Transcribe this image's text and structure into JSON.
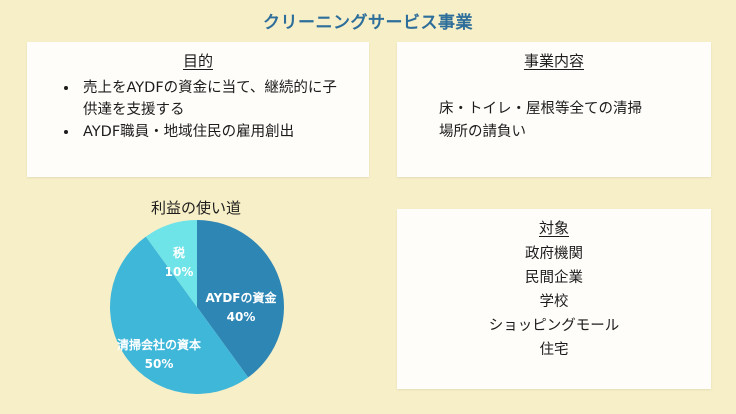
{
  "title": "クリーニングサービス事業",
  "purpose": {
    "heading": "目的",
    "items": [
      "売上をAYDFの資金に当て、継続的に子供達を支援する",
      "AYDF職員・地域住民の雇用創出"
    ]
  },
  "business": {
    "heading": "事業内容",
    "lines": [
      "床・トイレ・屋根等全ての清掃",
      "場所の請負い"
    ]
  },
  "target": {
    "heading": "対象",
    "items": [
      "政府機関",
      "民間企業",
      "学校",
      "ショッピングモール",
      "住宅"
    ]
  },
  "chart_data": {
    "type": "pie",
    "title": "利益の使い道",
    "slices": [
      {
        "label": "AYDFの資金",
        "value": 40,
        "value_label": "40%",
        "color": "#2e86b5"
      },
      {
        "label": "清掃会社の資本",
        "value": 50,
        "value_label": "50%",
        "color": "#3fb7d9"
      },
      {
        "label": "税",
        "value": 10,
        "value_label": "10%",
        "color": "#6ee3e8"
      }
    ]
  }
}
